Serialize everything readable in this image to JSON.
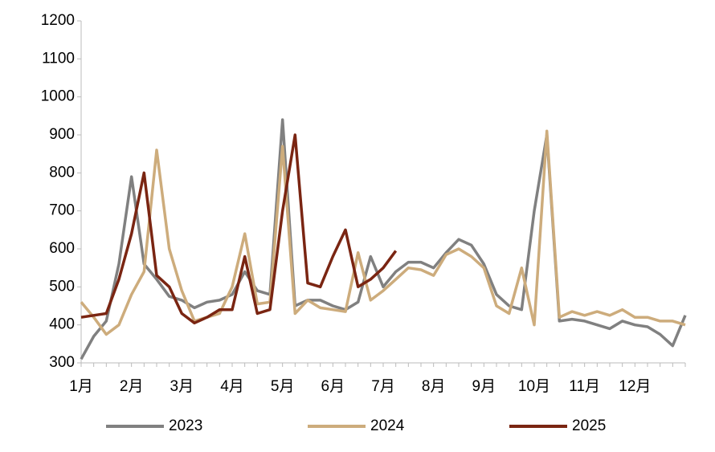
{
  "chart_data": {
    "type": "line",
    "categories": [
      "1月",
      null,
      null,
      null,
      "2月",
      null,
      null,
      null,
      "3月",
      null,
      null,
      null,
      "4月",
      null,
      null,
      null,
      "5月",
      null,
      null,
      null,
      "6月",
      null,
      null,
      null,
      "7月",
      null,
      null,
      null,
      "8月",
      null,
      null,
      null,
      "9月",
      null,
      null,
      null,
      "10月",
      null,
      null,
      null,
      "11月",
      null,
      null,
      null,
      "12月",
      null,
      null,
      null,
      null
    ],
    "series": [
      {
        "name": "2023",
        "color": "#808080",
        "values": [
          310,
          370,
          410,
          560,
          790,
          560,
          520,
          475,
          465,
          445,
          460,
          465,
          480,
          540,
          490,
          480,
          940,
          450,
          465,
          465,
          450,
          440,
          460,
          580,
          500,
          540,
          565,
          565,
          550,
          590,
          625,
          610,
          560,
          480,
          450,
          440,
          700,
          900,
          410,
          415,
          410,
          400,
          390,
          410,
          400,
          395,
          375,
          345,
          425
        ]
      },
      {
        "name": "2024",
        "color": "#cdac7c",
        "values": [
          460,
          420,
          375,
          400,
          480,
          540,
          860,
          600,
          490,
          410,
          420,
          430,
          500,
          640,
          455,
          460,
          870,
          430,
          465,
          445,
          440,
          435,
          590,
          465,
          490,
          520,
          550,
          545,
          530,
          585,
          600,
          580,
          550,
          450,
          430,
          550,
          400,
          910,
          420,
          435,
          425,
          435,
          425,
          440,
          420,
          420,
          410,
          410,
          400
        ]
      },
      {
        "name": "2025",
        "color": "#7a2512",
        "values": [
          420,
          425,
          430,
          520,
          640,
          800,
          530,
          500,
          430,
          405,
          420,
          440,
          440,
          580,
          430,
          440,
          700,
          900,
          510,
          500,
          580,
          650,
          500,
          520,
          550,
          595,
          null,
          null,
          null,
          null,
          null,
          null,
          null,
          null,
          null,
          null,
          null,
          null,
          null,
          null,
          null,
          null,
          null,
          null,
          null,
          null,
          null,
          null,
          null
        ]
      }
    ],
    "ylim": [
      300,
      1200
    ],
    "yticks": [
      300,
      400,
      500,
      600,
      700,
      800,
      900,
      1000,
      1100,
      1200
    ],
    "grid": false,
    "legend": "bottom"
  }
}
